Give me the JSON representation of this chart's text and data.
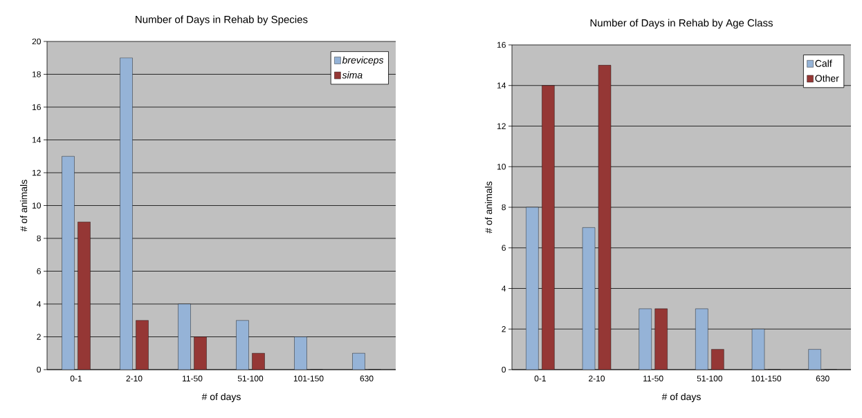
{
  "chart_data": [
    {
      "type": "bar",
      "title": "Number of Days in Rehab by Species",
      "xlabel": "# of days",
      "ylabel": "# of animals",
      "categories": [
        "0-1",
        "2-10",
        "11-50",
        "51-100",
        "101-150",
        "630"
      ],
      "series": [
        {
          "name": "breviceps",
          "color": "#95b3d7",
          "values": [
            13,
            19,
            4,
            3,
            2,
            1
          ]
        },
        {
          "name": "sima",
          "color": "#953735",
          "values": [
            9,
            3,
            2,
            1,
            0,
            0
          ]
        }
      ],
      "ylim": [
        0,
        20
      ],
      "yticks": [
        0,
        2,
        4,
        6,
        8,
        10,
        12,
        14,
        16,
        18,
        20
      ],
      "grid": "y",
      "legend": "top right"
    },
    {
      "type": "bar",
      "title": "Number of Days in Rehab by Age Class",
      "xlabel": "# of days",
      "ylabel": "# of animals",
      "categories": [
        "0-1",
        "2-10",
        "11-50",
        "51-100",
        "101-150",
        "630"
      ],
      "series": [
        {
          "name": "Calf",
          "color": "#95b3d7",
          "values": [
            8,
            7,
            3,
            3,
            2,
            1
          ]
        },
        {
          "name": "Other",
          "color": "#953735",
          "values": [
            14,
            15,
            3,
            1,
            0,
            0
          ]
        }
      ],
      "ylim": [
        0,
        16
      ],
      "yticks": [
        0,
        2,
        4,
        6,
        8,
        10,
        12,
        14,
        16
      ],
      "grid": "y",
      "legend": "top right"
    }
  ]
}
